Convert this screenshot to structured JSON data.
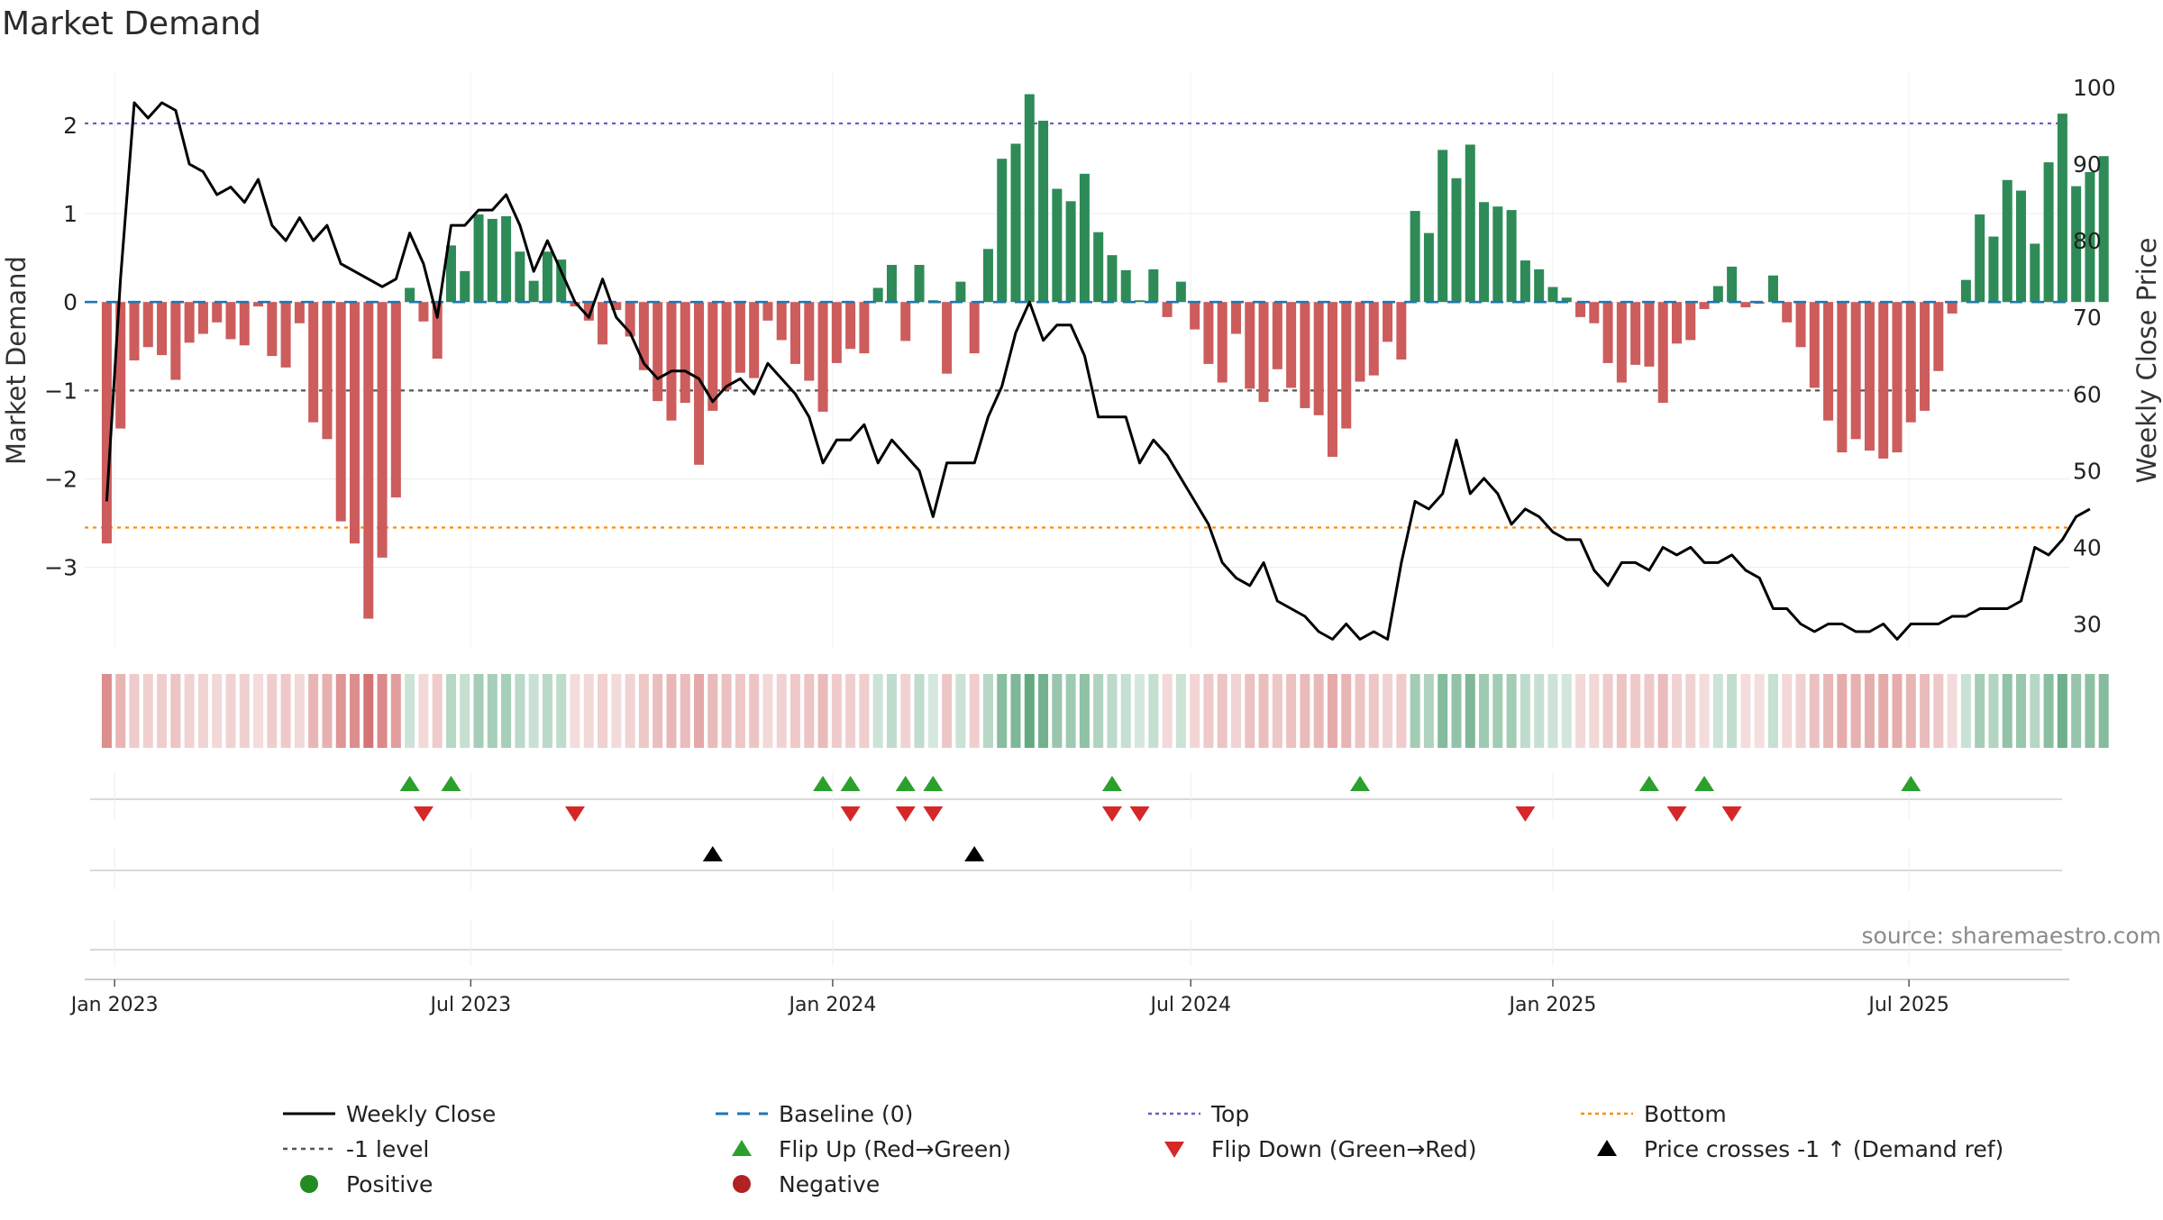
{
  "chart_data": {
    "type": "bar",
    "title": "Market Demand",
    "ylabel": "Market Demand",
    "y2label": "Weekly Close Price",
    "ylim": [
      -3.9,
      2.6
    ],
    "y2lim": [
      27,
      102
    ],
    "yticks": [
      2,
      1,
      0,
      -1,
      -2,
      -3
    ],
    "ytick_labels": [
      "2",
      "1",
      "0",
      "−1",
      "−2",
      "−3"
    ],
    "y2ticks": [
      100,
      90,
      80,
      70,
      60,
      50,
      40,
      30
    ],
    "y2tick_labels": [
      "100",
      "90",
      "80",
      "70",
      "60",
      "50",
      "40",
      "30"
    ],
    "reference_lines": {
      "top": 2.02,
      "minus_one": -1.0,
      "bottom": -2.55,
      "baseline": 0
    },
    "xlim_weeks": [
      -1.6,
      142.5
    ],
    "x_ticks": [
      {
        "label": "Jan 2023",
        "week": 0.57
      },
      {
        "label": "Jul 2023",
        "week": 26.43
      },
      {
        "label": "Jan 2024",
        "week": 52.71
      },
      {
        "label": "Jul 2024",
        "week": 78.71
      },
      {
        "label": "Jan 2025",
        "week": 105.0
      },
      {
        "label": "Jul 2025",
        "week": 130.86
      }
    ],
    "demand": [
      -2.73,
      -1.43,
      -0.66,
      -0.51,
      -0.6,
      -0.88,
      -0.46,
      -0.36,
      -0.23,
      -0.42,
      -0.49,
      -0.05,
      -0.61,
      -0.74,
      -0.24,
      -1.36,
      -1.55,
      -2.48,
      -2.73,
      -3.58,
      -2.89,
      -2.21,
      0.16,
      -0.22,
      -0.64,
      0.64,
      0.35,
      0.99,
      0.94,
      0.97,
      0.57,
      0.24,
      0.57,
      0.48,
      -0.05,
      -0.21,
      -0.48,
      -0.09,
      -0.39,
      -0.77,
      -1.12,
      -1.34,
      -1.14,
      -1.84,
      -1.23,
      -0.99,
      -0.8,
      -0.86,
      -0.21,
      -0.43,
      -0.7,
      -0.89,
      -1.24,
      -0.69,
      -0.53,
      -0.58,
      0.16,
      0.42,
      -0.44,
      0.42,
      0.02,
      -0.81,
      0.23,
      -0.58,
      0.6,
      1.62,
      1.79,
      2.35,
      2.05,
      1.28,
      1.14,
      1.45,
      0.79,
      0.53,
      0.36,
      0.02,
      0.37,
      -0.17,
      0.23,
      -0.31,
      -0.7,
      -0.91,
      -0.36,
      -0.98,
      -1.13,
      -0.76,
      -0.97,
      -1.2,
      -1.28,
      -1.75,
      -1.43,
      -0.9,
      -0.83,
      -0.45,
      -0.65,
      1.03,
      0.78,
      1.72,
      1.4,
      1.78,
      1.13,
      1.08,
      1.04,
      0.47,
      0.37,
      0.17,
      0.05,
      -0.17,
      -0.24,
      -0.69,
      -0.91,
      -0.71,
      -0.73,
      -1.14,
      -0.47,
      -0.43,
      -0.08,
      0.18,
      0.4,
      -0.06,
      -0.02,
      0.3,
      -0.23,
      -0.51,
      -0.97,
      -1.34,
      -1.7,
      -1.55,
      -1.68,
      -1.77,
      -1.7,
      -1.36,
      -1.23,
      -0.78,
      -0.13,
      0.25,
      0.99,
      0.74,
      1.38,
      1.26,
      0.66,
      1.58,
      2.13,
      1.31,
      1.47,
      1.65
    ],
    "close": [
      46.0,
      75.0,
      98.0,
      96.0,
      98.0,
      97.0,
      90.0,
      89.0,
      86.0,
      87.0,
      85.0,
      88.0,
      82.0,
      80.0,
      83.0,
      80.0,
      82.0,
      77.0,
      76.0,
      75.0,
      74.0,
      75.0,
      81.0,
      77.0,
      70.0,
      82.0,
      82.0,
      84.0,
      84.0,
      86.0,
      82.0,
      76.0,
      80.0,
      76.0,
      72.0,
      70.0,
      75.0,
      70.0,
      68.0,
      64.0,
      62.0,
      63.0,
      63.0,
      62.0,
      59.0,
      61.0,
      62.0,
      60.0,
      64.0,
      62.0,
      60.0,
      57.0,
      51.0,
      54.0,
      54.0,
      56.0,
      51.0,
      54.0,
      52.0,
      50.0,
      44.0,
      51.0,
      51.0,
      51.0,
      57.0,
      61.0,
      68.0,
      72.0,
      67.0,
      69.0,
      69.0,
      65.0,
      57.0,
      57.0,
      57.0,
      51.0,
      54.0,
      52.0,
      49.0,
      46.0,
      43.0,
      38.0,
      36.0,
      35.0,
      38.0,
      33.0,
      32.0,
      31.0,
      29.0,
      28.0,
      30.0,
      28.0,
      29.0,
      28.0,
      38.0,
      46.0,
      45.0,
      47.0,
      54.0,
      47.0,
      49.0,
      47.0,
      43.0,
      45.0,
      44.0,
      42.0,
      41.0,
      41.0,
      37.0,
      35.0,
      38.0,
      38.0,
      37.0,
      40.0,
      39.0,
      40.0,
      38.0,
      38.0,
      39.0,
      37.0,
      36.0,
      32.0,
      32.0,
      30.0,
      29.0,
      30.0,
      30.0,
      29.0,
      29.0,
      30.0,
      28.0,
      30.0,
      30.0,
      30.0,
      31.0,
      31.0,
      32.0,
      32.0,
      32.0,
      33.0,
      40.0,
      39.0,
      41.0,
      44.0,
      45.0
    ],
    "flip_up_weeks": [
      22,
      25,
      52,
      54,
      58,
      60,
      73,
      91,
      112,
      116,
      131
    ],
    "flip_down_weeks": [
      23,
      34,
      54,
      58,
      60,
      73,
      75,
      103,
      114,
      118
    ],
    "price_cross_weeks": [
      44,
      63
    ],
    "legend": [
      {
        "key": "weekly_close",
        "label": "Weekly Close",
        "marker": "line-solid"
      },
      {
        "key": "baseline",
        "label": "Baseline (0)",
        "marker": "line-dash"
      },
      {
        "key": "top",
        "label": "Top",
        "marker": "line-dot-purple"
      },
      {
        "key": "bottom",
        "label": "Bottom",
        "marker": "line-dot-orange"
      },
      {
        "key": "minus_one",
        "label": "-1 level",
        "marker": "line-dot-grey"
      },
      {
        "key": "flip_up",
        "label": "Flip Up (Red→Green)",
        "marker": "triangle-up-green"
      },
      {
        "key": "flip_down",
        "label": "Flip Down (Green→Red)",
        "marker": "triangle-down-red"
      },
      {
        "key": "price_cross",
        "label": "Price crosses -1 ↑ (Demand ref)",
        "marker": "triangle-up-black"
      },
      {
        "key": "positive",
        "label": "Positive",
        "marker": "circle-green"
      },
      {
        "key": "negative",
        "label": "Negative",
        "marker": "circle-red"
      }
    ],
    "source": "source: sharemaestro.com"
  },
  "colors": {
    "positive_bar": "#2e8b57",
    "negative_bar": "#cd5c5c",
    "close_line": "#000000",
    "baseline": "#1f77b4",
    "top_line": "#6a5acd",
    "bottom_line": "#ff8c00",
    "minus_one_line": "#555555",
    "flip_up": "#2ca02c",
    "flip_down": "#d62728",
    "price_cross": "#000000",
    "positive_dot": "#228b22",
    "negative_dot": "#b22222"
  }
}
